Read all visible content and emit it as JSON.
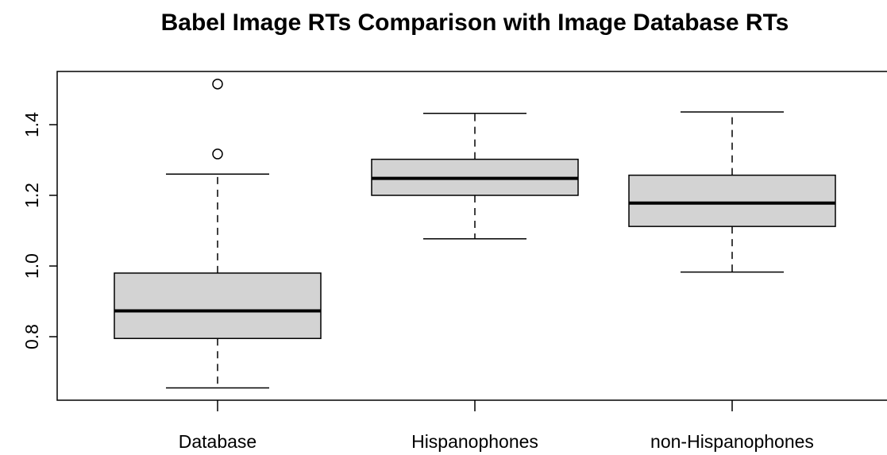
{
  "chart_data": {
    "type": "box",
    "title": "Babel Image RTs Comparison with Image Database RTs",
    "xlabel": "",
    "ylabel": "",
    "categories": [
      "Database",
      "Hispanophones",
      "non-Hispanophones"
    ],
    "ylim": [
      0.625,
      1.535
    ],
    "yticks": [
      0.8,
      1.0,
      1.2,
      1.4
    ],
    "ytick_labels": [
      "0.8",
      "1.0",
      "1.2",
      "1.4"
    ],
    "grid": false,
    "legend": "none",
    "box_fill": "#d3d3d3",
    "line_color": "#000000",
    "boxes": [
      {
        "category": "Database",
        "whisker_low": 0.655,
        "q1": 0.795,
        "median": 0.873,
        "q3": 0.98,
        "whisker_high": 1.26,
        "outliers": [
          1.317,
          1.515
        ]
      },
      {
        "category": "Hispanophones",
        "whisker_low": 1.077,
        "q1": 1.2,
        "median": 1.248,
        "q3": 1.302,
        "whisker_high": 1.432,
        "outliers": []
      },
      {
        "category": "non-Hispanophones",
        "whisker_low": 0.983,
        "q1": 1.112,
        "median": 1.178,
        "q3": 1.257,
        "whisker_high": 1.436,
        "outliers": []
      }
    ]
  }
}
